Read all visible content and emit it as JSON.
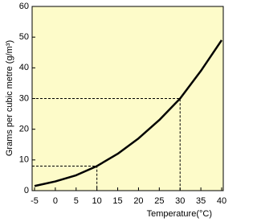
{
  "chart_data": {
    "type": "line",
    "x_label": "Temperature(°C)",
    "y_label": "Grams per cubic metre (g/m³)",
    "x": [
      -5,
      0,
      5,
      10,
      15,
      20,
      25,
      30,
      35,
      40
    ],
    "series": [
      {
        "color": "#000000",
        "values": [
          1.5,
          3,
          5,
          8,
          12,
          17,
          23,
          30,
          39,
          49
        ]
      }
    ],
    "guides": [
      {
        "x": 10,
        "y": 8
      },
      {
        "x": 30,
        "y": 30
      }
    ],
    "xlim": [
      -5,
      40
    ],
    "xticks": [
      -5,
      0,
      5,
      10,
      15,
      20,
      25,
      30,
      35,
      40
    ],
    "ylim": [
      0,
      60
    ],
    "yticks": [
      0,
      10,
      20,
      30,
      40,
      50,
      60
    ],
    "background": "#fdfbc9",
    "grid": false
  }
}
